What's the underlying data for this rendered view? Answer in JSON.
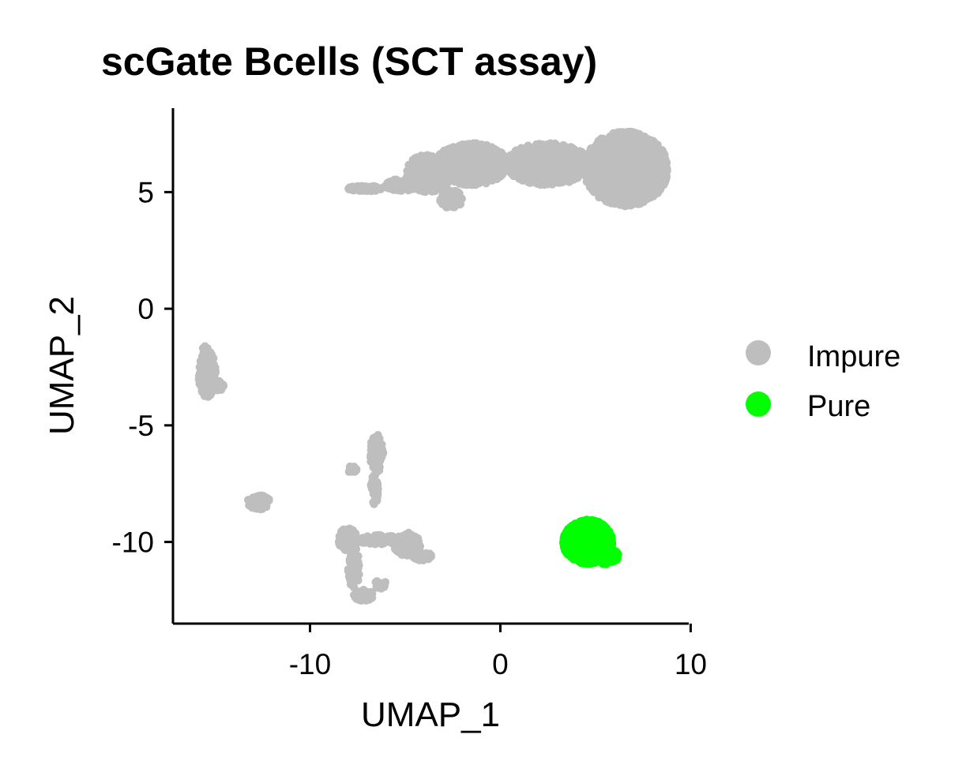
{
  "chart_data": {
    "type": "scatter",
    "title": "scGate Bcells (SCT assay)",
    "xlabel": "UMAP_1",
    "ylabel": "UMAP_2",
    "xlim": [
      -17.2,
      9.9
    ],
    "ylim": [
      -13.5,
      8.6
    ],
    "xticks": [
      -10,
      0,
      10
    ],
    "yticks": [
      5,
      0,
      -5,
      -10
    ],
    "xtick_labels": [
      "-10",
      "0",
      "10"
    ],
    "ytick_labels": [
      "5",
      "0",
      "-5",
      "-10"
    ],
    "grid": false,
    "legend_position": "right",
    "series": [
      {
        "name": "Impure",
        "color": "#BEBEBE",
        "clusters": [
          {
            "shape": "ellipse",
            "cx": 6.6,
            "cy": 6.0,
            "rx": 2.2,
            "ry": 1.6,
            "n": 1400
          },
          {
            "shape": "ellipse",
            "cx": 2.5,
            "cy": 6.2,
            "rx": 2.2,
            "ry": 0.9,
            "n": 700
          },
          {
            "shape": "ellipse",
            "cx": -1.5,
            "cy": 6.2,
            "rx": 1.9,
            "ry": 0.9,
            "n": 650
          },
          {
            "shape": "ellipse",
            "cx": -3.8,
            "cy": 5.8,
            "rx": 1.2,
            "ry": 0.8,
            "n": 250
          },
          {
            "shape": "ellipse",
            "cx": -2.6,
            "cy": 4.7,
            "rx": 0.6,
            "ry": 0.4,
            "n": 80
          },
          {
            "shape": "ellipse",
            "cx": -7.1,
            "cy": 5.15,
            "rx": 0.9,
            "ry": 0.12,
            "n": 90
          },
          {
            "shape": "ellipse",
            "cx": -5.2,
            "cy": 5.3,
            "rx": 0.9,
            "ry": 0.25,
            "n": 80
          },
          {
            "shape": "ellipse",
            "cx": -15.4,
            "cy": -2.8,
            "rx": 0.45,
            "ry": 1.0,
            "n": 200
          },
          {
            "shape": "ellipse",
            "cx": -15.5,
            "cy": -1.9,
            "rx": 0.2,
            "ry": 0.3,
            "n": 30
          },
          {
            "shape": "ellipse",
            "cx": -14.8,
            "cy": -3.3,
            "rx": 0.3,
            "ry": 0.2,
            "n": 25
          },
          {
            "shape": "ellipse",
            "cx": -12.7,
            "cy": -8.3,
            "rx": 0.6,
            "ry": 0.3,
            "n": 70
          },
          {
            "shape": "ellipse",
            "cx": -6.5,
            "cy": -6.2,
            "rx": 0.35,
            "ry": 0.8,
            "n": 80
          },
          {
            "shape": "ellipse",
            "cx": -6.6,
            "cy": -7.7,
            "rx": 0.2,
            "ry": 0.7,
            "n": 40
          },
          {
            "shape": "ellipse",
            "cx": -7.8,
            "cy": -6.9,
            "rx": 0.25,
            "ry": 0.2,
            "n": 12
          },
          {
            "shape": "ellipse",
            "cx": -8.0,
            "cy": -9.9,
            "rx": 0.5,
            "ry": 0.5,
            "n": 120
          },
          {
            "shape": "ellipse",
            "cx": -6.3,
            "cy": -9.9,
            "rx": 1.3,
            "ry": 0.2,
            "n": 120
          },
          {
            "shape": "ellipse",
            "cx": -4.9,
            "cy": -10.1,
            "rx": 0.7,
            "ry": 0.5,
            "n": 90
          },
          {
            "shape": "ellipse",
            "cx": -4.1,
            "cy": -10.6,
            "rx": 0.5,
            "ry": 0.2,
            "n": 50
          },
          {
            "shape": "ellipse",
            "cx": -7.7,
            "cy": -11.1,
            "rx": 0.3,
            "ry": 0.9,
            "n": 80
          },
          {
            "shape": "ellipse",
            "cx": -7.2,
            "cy": -12.3,
            "rx": 0.5,
            "ry": 0.25,
            "n": 50
          },
          {
            "shape": "ellipse",
            "cx": -6.3,
            "cy": -11.8,
            "rx": 0.3,
            "ry": 0.2,
            "n": 20
          }
        ]
      },
      {
        "name": "Pure",
        "color": "#00FF00",
        "clusters": [
          {
            "shape": "ellipse",
            "cx": 4.6,
            "cy": -10.0,
            "rx": 1.3,
            "ry": 0.95,
            "n": 900
          },
          {
            "shape": "ellipse",
            "cx": 5.5,
            "cy": -10.6,
            "rx": 0.7,
            "ry": 0.35,
            "n": 150
          }
        ]
      }
    ]
  }
}
